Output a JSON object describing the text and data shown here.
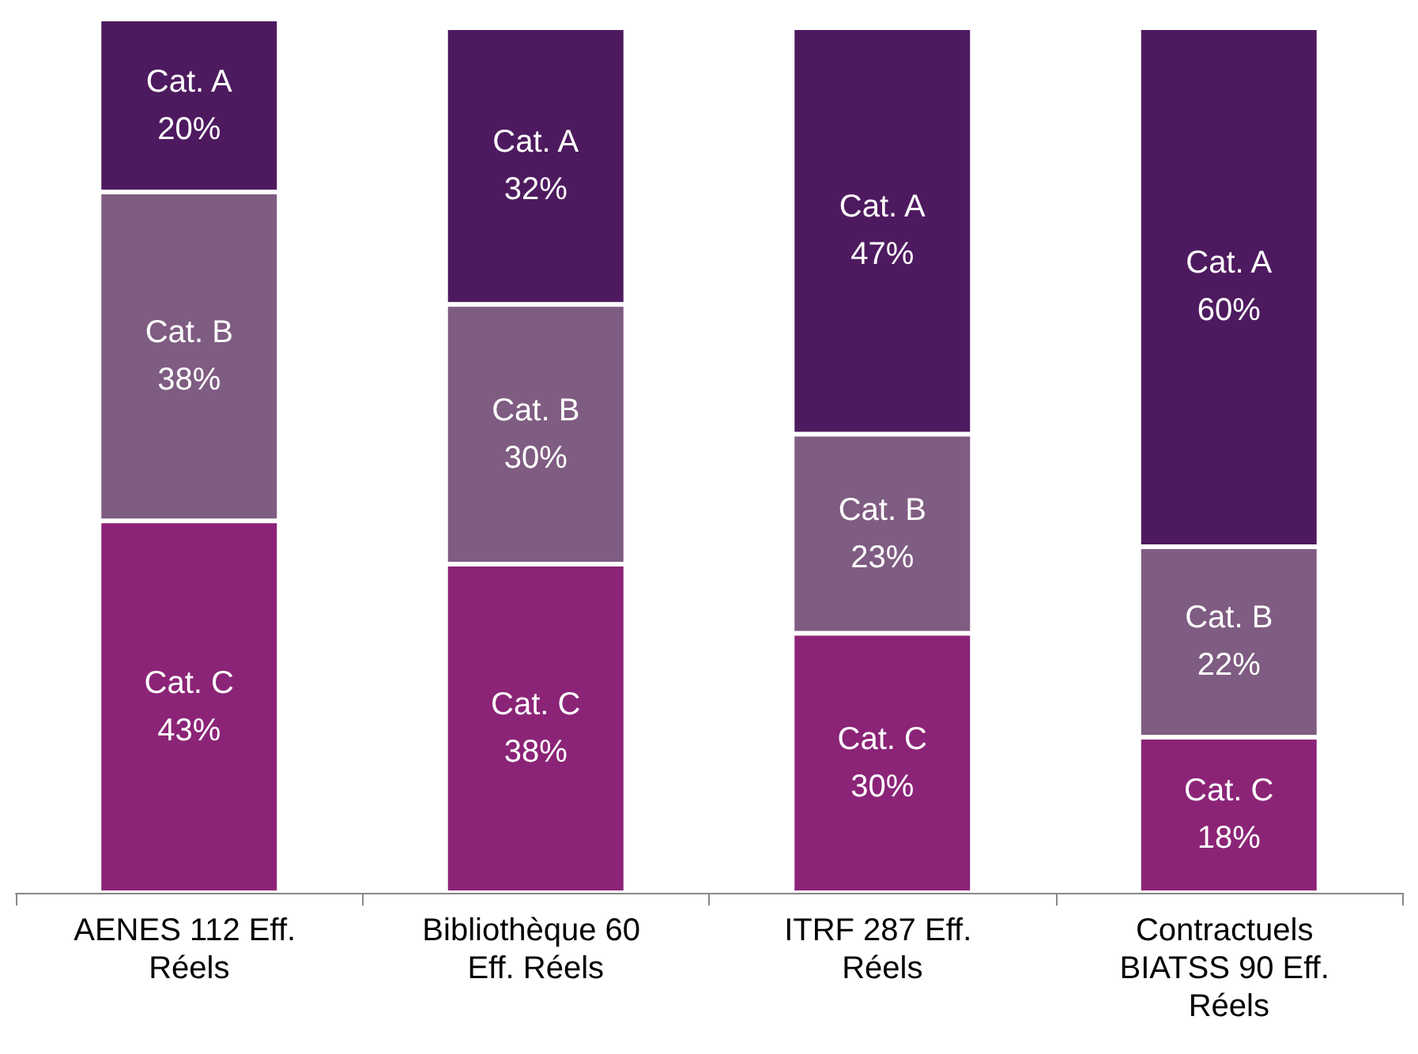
{
  "chart_data": {
    "type": "bar",
    "stacked": true,
    "legend": false,
    "tick_labels": "x",
    "categories": [
      "AENES 112 Eff. Réels",
      "Bibliothèque 60 Eff. Réels",
      "ITRF 287 Eff. Réels",
      "Contractuels BIATSS 90 Eff. Réels"
    ],
    "series": [
      {
        "name": "Cat. C",
        "color": "#8b2477",
        "values": [
          43,
          38,
          30,
          18
        ],
        "value_labels": [
          "43%",
          "38%",
          "30%",
          "18%"
        ]
      },
      {
        "name": "Cat. B",
        "color": "#7f5c82",
        "values": [
          38,
          30,
          23,
          22
        ],
        "value_labels": [
          "38%",
          "30%",
          "23%",
          "22%"
        ]
      },
      {
        "name": "Cat. A",
        "color": "#4e1a5f",
        "values": [
          20,
          32,
          47,
          60
        ],
        "value_labels": [
          "20%",
          "32%",
          "47%",
          "60%"
        ]
      }
    ]
  }
}
